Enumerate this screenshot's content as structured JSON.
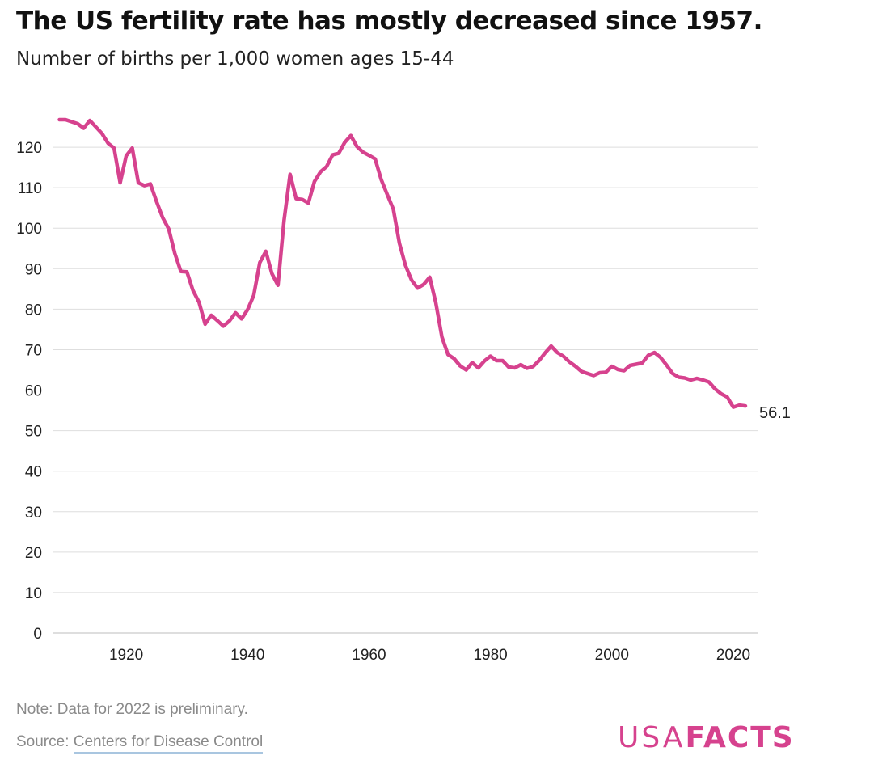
{
  "chart_data": {
    "type": "line",
    "title": "The US fertility rate has mostly decreased since 1957.",
    "subtitle": "Number of births per 1,000 women ages 15-44",
    "xlabel": "",
    "ylabel": "",
    "xlim": [
      1908,
      2024
    ],
    "ylim": [
      0,
      130
    ],
    "x_ticks": [
      1920,
      1940,
      1960,
      1980,
      2000,
      2020
    ],
    "y_ticks": [
      0,
      10,
      20,
      30,
      40,
      50,
      60,
      70,
      80,
      90,
      100,
      110,
      120
    ],
    "grid": "horizontal",
    "line_color": "#d6428e",
    "end_label": "56.1",
    "series": [
      {
        "x": [
          1909,
          1910,
          1911,
          1912,
          1913,
          1914,
          1915,
          1916,
          1917,
          1918,
          1919,
          1920,
          1921,
          1922,
          1923,
          1924,
          1925,
          1926,
          1927,
          1928,
          1929,
          1930,
          1931,
          1932,
          1933,
          1934,
          1935,
          1936,
          1937,
          1938,
          1939,
          1940,
          1941,
          1942,
          1943,
          1944,
          1945,
          1946,
          1947,
          1948,
          1949,
          1950,
          1951,
          1952,
          1953,
          1954,
          1955,
          1956,
          1957,
          1958,
          1959,
          1960,
          1961,
          1962,
          1963,
          1964,
          1965,
          1966,
          1967,
          1968,
          1969,
          1970,
          1971,
          1972,
          1973,
          1974,
          1975,
          1976,
          1977,
          1978,
          1979,
          1980,
          1981,
          1982,
          1983,
          1984,
          1985,
          1986,
          1987,
          1988,
          1989,
          1990,
          1991,
          1992,
          1993,
          1994,
          1995,
          1996,
          1997,
          1998,
          1999,
          2000,
          2001,
          2002,
          2003,
          2004,
          2005,
          2006,
          2007,
          2008,
          2009,
          2010,
          2011,
          2012,
          2013,
          2014,
          2015,
          2016,
          2017,
          2018,
          2019,
          2020,
          2021,
          2022
        ],
        "values": [
          126.8,
          126.8,
          126.3,
          125.8,
          124.7,
          126.6,
          125.0,
          123.4,
          121.0,
          119.8,
          111.2,
          117.9,
          119.8,
          111.2,
          110.5,
          110.9,
          106.6,
          102.6,
          99.8,
          93.8,
          89.3,
          89.2,
          84.6,
          81.7,
          76.3,
          78.5,
          77.2,
          75.8,
          77.1,
          79.1,
          77.6,
          79.9,
          83.4,
          91.5,
          94.3,
          88.8,
          85.9,
          101.9,
          113.3,
          107.3,
          107.1,
          106.2,
          111.5,
          113.9,
          115.2,
          118.1,
          118.5,
          121.2,
          122.9,
          120.2,
          118.8,
          118.0,
          117.1,
          112.0,
          108.3,
          104.7,
          96.3,
          90.8,
          87.2,
          85.2,
          86.1,
          87.9,
          81.6,
          73.1,
          68.8,
          67.8,
          66.0,
          65.0,
          66.8,
          65.5,
          67.2,
          68.4,
          67.3,
          67.3,
          65.7,
          65.5,
          66.3,
          65.4,
          65.8,
          67.3,
          69.2,
          70.9,
          69.3,
          68.4,
          67.0,
          65.9,
          64.6,
          64.1,
          63.6,
          64.3,
          64.4,
          65.9,
          65.1,
          64.8,
          66.1,
          66.4,
          66.7,
          68.6,
          69.3,
          68.1,
          66.2,
          64.1,
          63.2,
          63.0,
          62.5,
          62.9,
          62.5,
          62.0,
          60.3,
          59.1,
          58.3,
          55.8,
          56.3,
          56.1
        ]
      }
    ]
  },
  "footer": {
    "note": "Note: Data for 2022 is preliminary.",
    "source_prefix": "Source: ",
    "source_link": "Centers for Disease Control"
  },
  "logo": {
    "usa": "USA",
    "facts": "FACTS",
    "color": "#d6428e"
  }
}
